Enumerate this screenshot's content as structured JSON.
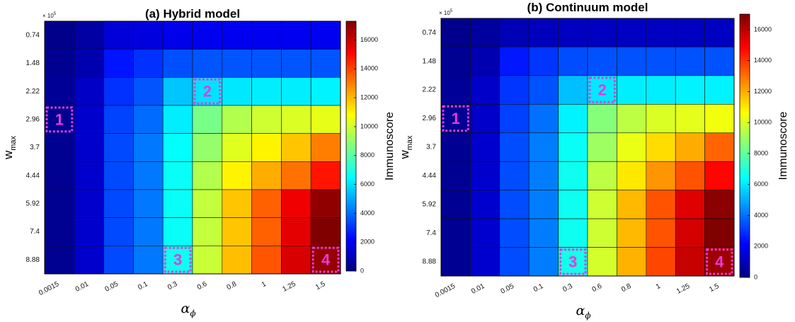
{
  "colors": {
    "marker": "#e23cd8",
    "grid": "#111111",
    "colormap": "jet"
  },
  "chart_data": [
    {
      "type": "heatmap",
      "title": "(a) Hybrid model",
      "xlabel": "α",
      "xlabel_sub": "ϕ",
      "ylabel": "w",
      "ylabel_sub": "max",
      "y_multiplier": "× 10",
      "y_multiplier_exp": "5",
      "x": [
        "0.0015",
        "0.01",
        "0.05",
        "0.1",
        "0.3",
        "0.6",
        "0.8",
        "1",
        "1.25",
        "1.5"
      ],
      "y": [
        "0.74",
        "1.48",
        "2.22",
        "2.96",
        "3.7",
        "4.44",
        "5.92",
        "7.4",
        "8.88"
      ],
      "values": [
        [
          200,
          600,
          1500,
          1600,
          1800,
          1900,
          1900,
          1900,
          1900,
          1900
        ],
        [
          300,
          800,
          2500,
          3000,
          3500,
          3600,
          3600,
          3600,
          3600,
          3600
        ],
        [
          400,
          1200,
          3000,
          3600,
          5500,
          6000,
          6100,
          6200,
          6200,
          6300
        ],
        [
          300,
          1300,
          3300,
          4000,
          6200,
          8500,
          9500,
          10000,
          10200,
          10400
        ],
        [
          300,
          1300,
          3400,
          4200,
          6500,
          9000,
          10300,
          11000,
          11800,
          13000
        ],
        [
          300,
          1300,
          3400,
          4200,
          6600,
          9500,
          11000,
          12200,
          13200,
          14800
        ],
        [
          300,
          1300,
          3400,
          4200,
          6600,
          9800,
          11800,
          13500,
          15400,
          17000
        ],
        [
          300,
          1300,
          3400,
          4200,
          6600,
          9800,
          11800,
          13500,
          15600,
          17300
        ],
        [
          300,
          1300,
          3400,
          4200,
          6700,
          9900,
          11900,
          13700,
          15800,
          16900
        ]
      ],
      "colorbar": {
        "label": "Immunoscore",
        "range": [
          0,
          17300
        ],
        "ticks": [
          "0",
          "2000",
          "4000",
          "6000",
          "8000",
          "10000",
          "12000",
          "14000",
          "16000"
        ]
      },
      "markers": [
        {
          "label": "1",
          "col": 0,
          "row": 3
        },
        {
          "label": "2",
          "col": 5,
          "row": 2
        },
        {
          "label": "3",
          "col": 4,
          "row": 8
        },
        {
          "label": "4",
          "col": 9,
          "row": 8
        }
      ]
    },
    {
      "type": "heatmap",
      "title": "(b)  Continuum model",
      "xlabel": "α",
      "xlabel_sub": "ϕ",
      "ylabel": "w",
      "ylabel_sub": "max",
      "y_multiplier": "× 10",
      "y_multiplier_exp": "5",
      "x": [
        "0.0015",
        "0.01",
        "0.05",
        "0.1",
        "0.3",
        "0.6",
        "0.8",
        "1",
        "1.25",
        "1.5"
      ],
      "y": [
        "0.74",
        "1.48",
        "2.22",
        "2.96",
        "3.7",
        "4.44",
        "5.92",
        "7.4",
        "8.88"
      ],
      "values": [
        [
          200,
          500,
          900,
          1000,
          1100,
          1100,
          1100,
          1100,
          1100,
          1100
        ],
        [
          300,
          800,
          2500,
          3000,
          3400,
          3500,
          3500,
          3500,
          3500,
          3500
        ],
        [
          400,
          1200,
          3000,
          3500,
          5300,
          6000,
          6100,
          6100,
          6200,
          6200
        ],
        [
          300,
          1200,
          3200,
          4000,
          6200,
          8600,
          9500,
          10000,
          10200,
          10400
        ],
        [
          300,
          1300,
          3400,
          4200,
          6500,
          9000,
          10300,
          11200,
          12000,
          13200
        ],
        [
          300,
          1300,
          3400,
          4200,
          6600,
          9500,
          11000,
          12400,
          13500,
          14800
        ],
        [
          300,
          1300,
          3400,
          4200,
          6600,
          9800,
          11800,
          13500,
          15400,
          16800
        ],
        [
          300,
          1300,
          3400,
          4200,
          6600,
          9800,
          11800,
          13500,
          15600,
          17000
        ],
        [
          300,
          1300,
          3400,
          4200,
          6700,
          9900,
          11900,
          13700,
          15800,
          16500
        ]
      ],
      "colorbar": {
        "label": "Immunoscore",
        "range": [
          0,
          17000
        ],
        "ticks": [
          "0",
          "2000",
          "4000",
          "6000",
          "8000",
          "10000",
          "12000",
          "14000",
          "16000"
        ]
      },
      "markers": [
        {
          "label": "1",
          "col": 0,
          "row": 3
        },
        {
          "label": "2",
          "col": 5,
          "row": 2
        },
        {
          "label": "3",
          "col": 4,
          "row": 8
        },
        {
          "label": "4",
          "col": 9,
          "row": 8
        }
      ]
    }
  ]
}
